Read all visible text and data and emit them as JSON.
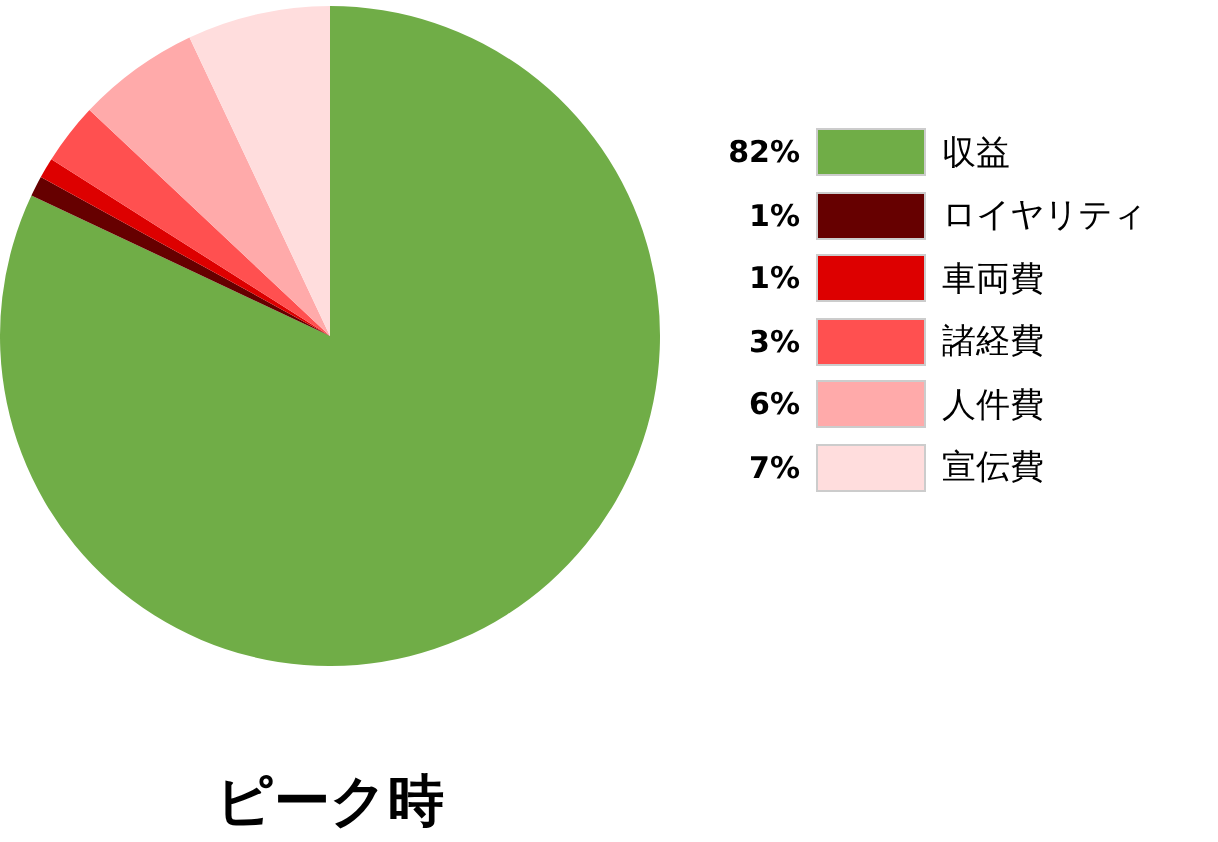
{
  "chart_data": {
    "type": "pie",
    "title": "ピーク時",
    "categories": [
      "収益",
      "ロイヤリティ",
      "車両費",
      "諸経費",
      "人件費",
      "宣伝費"
    ],
    "values": [
      82,
      1,
      1,
      3,
      6,
      7
    ],
    "colors": [
      "#70ad47",
      "#660000",
      "#dd0000",
      "#ff5050",
      "#ffaaaa",
      "#ffdddd"
    ],
    "value_labels": [
      "82%",
      "1%",
      "1%",
      "3%",
      "6%",
      "7%"
    ],
    "legend": "right"
  }
}
